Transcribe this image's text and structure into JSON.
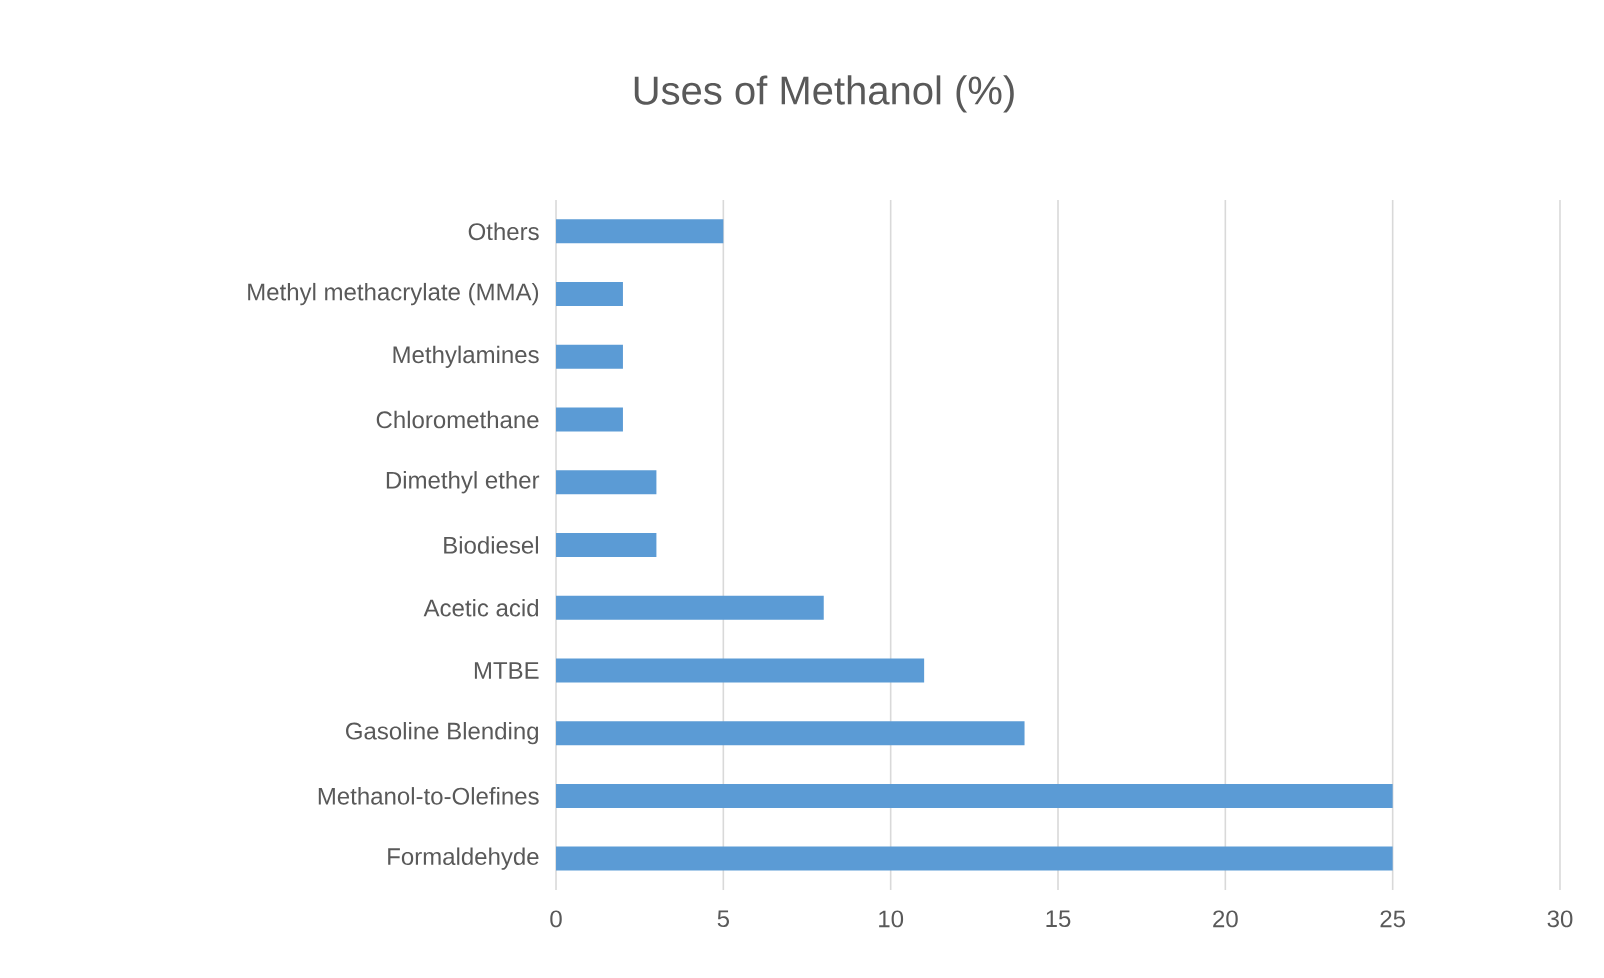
{
  "chart_data": {
    "type": "bar",
    "orientation": "horizontal",
    "title": "Uses of Methanol (%)",
    "categories": [
      "Others",
      "Methyl methacrylate (MMA)",
      "Methylamines",
      "Chloromethane",
      "Dimethyl ether",
      "Biodiesel",
      "Acetic acid",
      "MTBE",
      "Gasoline Blending",
      "Methanol-to-Olefines",
      "Formaldehyde"
    ],
    "values": [
      5,
      2,
      2,
      2,
      3,
      3,
      8,
      11,
      14,
      25,
      25
    ],
    "color": "#5b9bd5",
    "xlim": [
      0,
      30
    ],
    "xticks": [
      0,
      5,
      10,
      15,
      20,
      25,
      30
    ],
    "grid": "x"
  }
}
